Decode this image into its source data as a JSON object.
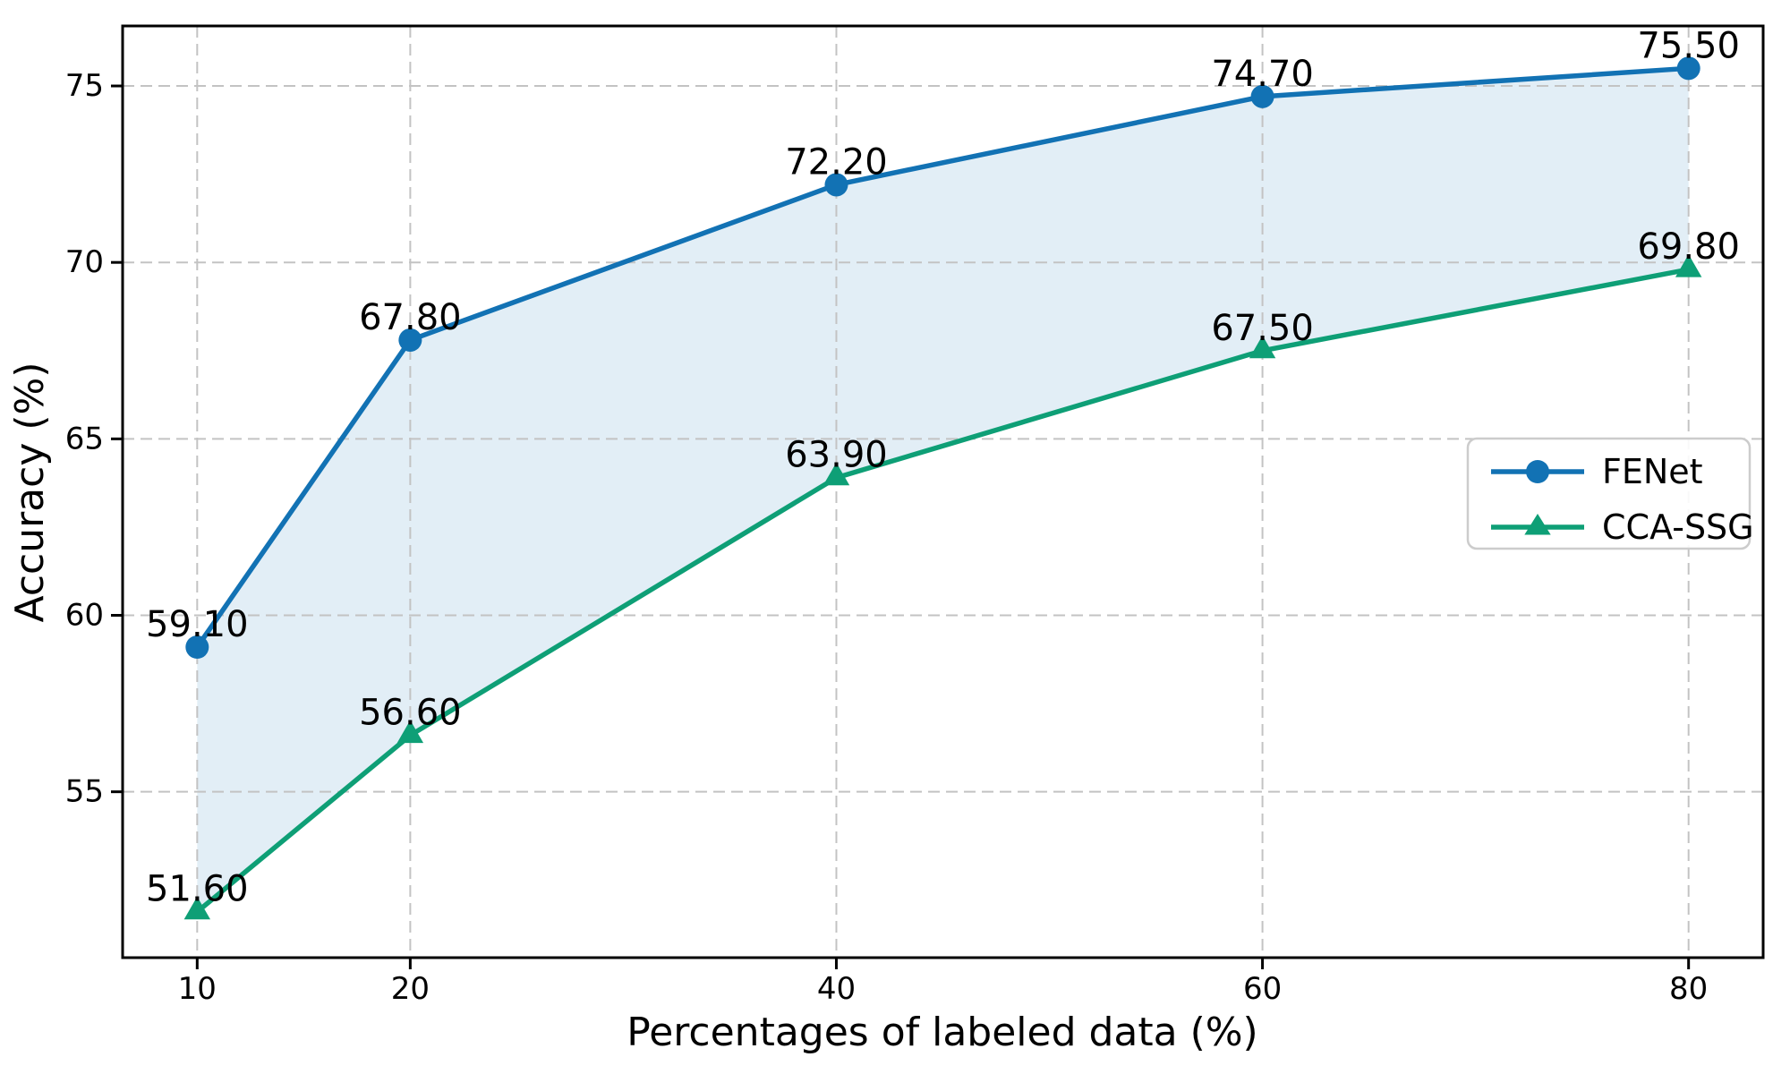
{
  "chart_data": {
    "type": "line",
    "title": "",
    "xlabel": "Percentages of labeled data (%)",
    "ylabel": "Accuracy (%)",
    "x": [
      10,
      20,
      40,
      60,
      80
    ],
    "xticks": [
      "10",
      "20",
      "40",
      "60",
      "80"
    ],
    "yticks": [
      "55",
      "60",
      "65",
      "70",
      "75"
    ],
    "xlim": [
      6.5,
      83.5
    ],
    "ylim": [
      50.3,
      76.7
    ],
    "grid": true,
    "grid_style": "dashed",
    "legend_position": "center-right",
    "series": [
      {
        "name": "FENet",
        "marker": "circle",
        "color": "#1272b4",
        "values": [
          59.1,
          67.8,
          72.2,
          74.7,
          75.5
        ],
        "point_labels": [
          "59.10",
          "67.80",
          "72.20",
          "74.70",
          "75.50"
        ]
      },
      {
        "name": "CCA-SSG",
        "marker": "triangle",
        "color": "#0e9f76",
        "values": [
          51.6,
          56.6,
          63.9,
          67.5,
          69.8
        ],
        "point_labels": [
          "51.60",
          "56.60",
          "63.90",
          "67.50",
          "69.80"
        ]
      }
    ],
    "fill_between": {
      "between": [
        "FENet",
        "CCA-SSG"
      ],
      "color": "#1272b4",
      "opacity": 0.12
    },
    "colors": {
      "grid": "#c3c3c3",
      "spine": "#000000",
      "legend_border": "#cccccc",
      "background": "#ffffff"
    }
  }
}
